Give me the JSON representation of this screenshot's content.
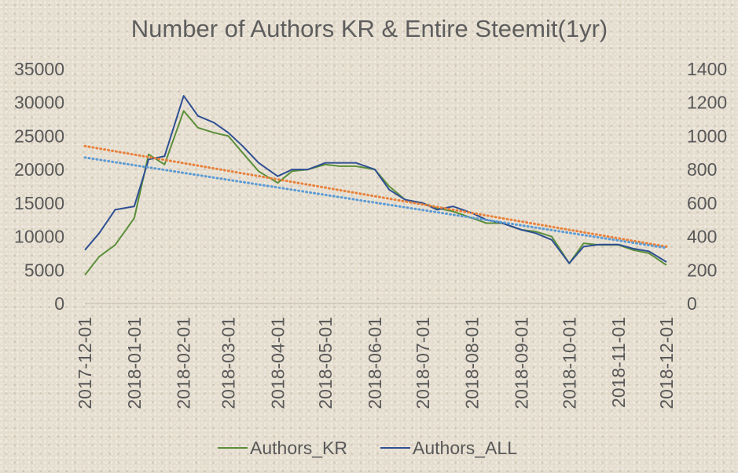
{
  "chart_data": {
    "type": "line",
    "title": "Number of Authors KR & Entire Steemit(1yr)",
    "x_ticks": [
      "2017-12-01",
      "2018-01-01",
      "2018-02-01",
      "2018-03-01",
      "2018-04-01",
      "2018-05-01",
      "2018-06-01",
      "2018-07-01",
      "2018-08-01",
      "2018-09-01",
      "2018-10-01",
      "2018-11-01",
      "2018-12-01"
    ],
    "y_left": {
      "min": 0,
      "max": 35000,
      "ticks": [
        0,
        5000,
        10000,
        15000,
        20000,
        25000,
        30000,
        35000
      ]
    },
    "y_right": {
      "min": 0,
      "max": 1400,
      "ticks": [
        0,
        200,
        400,
        600,
        800,
        1000,
        1200,
        1400
      ]
    },
    "series": [
      {
        "name": "Authors_KR",
        "axis": "right",
        "color": "#5b8f3a",
        "x": [
          "2017-12-01",
          "2017-12-10",
          "2017-12-20",
          "2018-01-01",
          "2018-01-10",
          "2018-01-20",
          "2018-02-01",
          "2018-02-10",
          "2018-02-20",
          "2018-03-01",
          "2018-03-10",
          "2018-03-20",
          "2018-04-01",
          "2018-04-10",
          "2018-04-20",
          "2018-05-01",
          "2018-05-10",
          "2018-05-20",
          "2018-06-01",
          "2018-06-10",
          "2018-06-20",
          "2018-07-01",
          "2018-07-10",
          "2018-07-20",
          "2018-08-01",
          "2018-08-10",
          "2018-08-20",
          "2018-09-01",
          "2018-09-10",
          "2018-09-20",
          "2018-10-01",
          "2018-10-10",
          "2018-10-20",
          "2018-11-01",
          "2018-11-10",
          "2018-11-20",
          "2018-12-01"
        ],
        "values": [
          170,
          280,
          350,
          510,
          890,
          830,
          1150,
          1050,
          1020,
          1000,
          900,
          790,
          720,
          790,
          800,
          830,
          820,
          820,
          800,
          700,
          620,
          600,
          570,
          550,
          510,
          480,
          480,
          440,
          430,
          400,
          240,
          360,
          350,
          350,
          320,
          300,
          230
        ]
      },
      {
        "name": "Authors_ALL",
        "axis": "left",
        "color": "#2e4f93",
        "x": [
          "2017-12-01",
          "2017-12-10",
          "2017-12-20",
          "2018-01-01",
          "2018-01-10",
          "2018-01-20",
          "2018-02-01",
          "2018-02-10",
          "2018-02-20",
          "2018-03-01",
          "2018-03-10",
          "2018-03-20",
          "2018-04-01",
          "2018-04-10",
          "2018-04-20",
          "2018-05-01",
          "2018-05-10",
          "2018-05-20",
          "2018-06-01",
          "2018-06-10",
          "2018-06-20",
          "2018-07-01",
          "2018-07-10",
          "2018-07-20",
          "2018-08-01",
          "2018-08-10",
          "2018-08-20",
          "2018-09-01",
          "2018-09-10",
          "2018-09-20",
          "2018-10-01",
          "2018-10-10",
          "2018-10-20",
          "2018-11-01",
          "2018-11-10",
          "2018-11-20",
          "2018-12-01"
        ],
        "values": [
          8000,
          10500,
          14000,
          14500,
          21500,
          22000,
          31000,
          28000,
          27000,
          25500,
          23500,
          21000,
          19000,
          20000,
          20000,
          21000,
          21000,
          21000,
          20000,
          17000,
          15500,
          15000,
          14000,
          14500,
          13500,
          12500,
          12000,
          11000,
          10500,
          9500,
          6000,
          8500,
          8800,
          8800,
          8200,
          7800,
          6200
        ]
      },
      {
        "name": "trend_KR",
        "axis": "right",
        "style": "dotted",
        "color": "#e8803a",
        "x": [
          "2017-12-01",
          "2018-12-01"
        ],
        "values": [
          940,
          340
        ]
      },
      {
        "name": "trend_ALL",
        "axis": "left",
        "style": "dotted",
        "color": "#5b9bd5",
        "x": [
          "2017-12-01",
          "2018-12-01"
        ],
        "values": [
          21800,
          8300
        ]
      }
    ],
    "legend": {
      "position": "bottom",
      "items": [
        "Authors_KR",
        "Authors_ALL"
      ]
    },
    "grid": false
  }
}
